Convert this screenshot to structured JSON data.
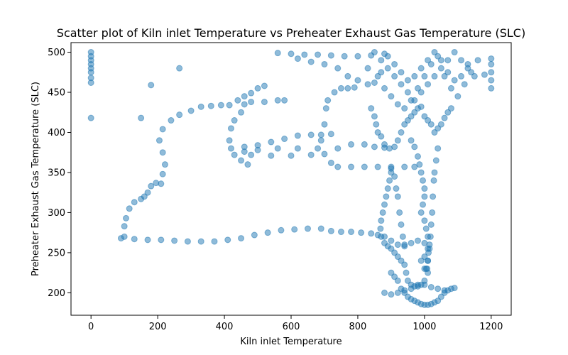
{
  "chart_data": {
    "type": "scatter",
    "title": "Scatter plot of Kiln inlet Temperature vs Preheater Exhaust Gas Temperature (SLC)",
    "xlabel": "Kiln inlet Temperature",
    "ylabel": "Preheater Exhaust Gas Temperature (SLC)",
    "xlim": [
      -60,
      1260
    ],
    "ylim": [
      172,
      512
    ],
    "xticks": [
      0,
      200,
      400,
      600,
      800,
      1000,
      1200
    ],
    "yticks": [
      200,
      250,
      300,
      350,
      400,
      450,
      500
    ],
    "grid": false,
    "color": "#1f77b4",
    "alpha": 0.5,
    "series": [
      {
        "points": [
          [
            0,
            418
          ],
          [
            0,
            462
          ],
          [
            0,
            468
          ],
          [
            0,
            475
          ],
          [
            0,
            480
          ],
          [
            0,
            485
          ],
          [
            0,
            490
          ],
          [
            0,
            495
          ],
          [
            0,
            500
          ],
          [
            150,
            418
          ],
          [
            180,
            459
          ],
          [
            265,
            480
          ],
          [
            90,
            268
          ],
          [
            100,
            270
          ],
          [
            100,
            283
          ],
          [
            105,
            293
          ],
          [
            115,
            305
          ],
          [
            130,
            313
          ],
          [
            150,
            317
          ],
          [
            160,
            320
          ],
          [
            170,
            325
          ],
          [
            180,
            333
          ],
          [
            195,
            337
          ],
          [
            210,
            336
          ],
          [
            215,
            348
          ],
          [
            222,
            360
          ],
          [
            215,
            375
          ],
          [
            205,
            390
          ],
          [
            215,
            404
          ],
          [
            240,
            415
          ],
          [
            265,
            422
          ],
          [
            300,
            427
          ],
          [
            330,
            432
          ],
          [
            360,
            433
          ],
          [
            390,
            434
          ],
          [
            415,
            434
          ],
          [
            440,
            440
          ],
          [
            460,
            445
          ],
          [
            480,
            449
          ],
          [
            500,
            455
          ],
          [
            520,
            458
          ],
          [
            130,
            267
          ],
          [
            170,
            266
          ],
          [
            210,
            266
          ],
          [
            250,
            265
          ],
          [
            290,
            264
          ],
          [
            330,
            264
          ],
          [
            370,
            264
          ],
          [
            410,
            266
          ],
          [
            450,
            268
          ],
          [
            490,
            272
          ],
          [
            530,
            275
          ],
          [
            570,
            278
          ],
          [
            610,
            279
          ],
          [
            650,
            280
          ],
          [
            690,
            280
          ],
          [
            720,
            277
          ],
          [
            750,
            276
          ],
          [
            780,
            276
          ],
          [
            810,
            275
          ],
          [
            840,
            274
          ],
          [
            860,
            272
          ],
          [
            880,
            270
          ],
          [
            470,
            360
          ],
          [
            450,
            365
          ],
          [
            430,
            372
          ],
          [
            420,
            380
          ],
          [
            415,
            390
          ],
          [
            420,
            405
          ],
          [
            430,
            415
          ],
          [
            450,
            425
          ],
          [
            460,
            435
          ],
          [
            480,
            438
          ],
          [
            520,
            438
          ],
          [
            560,
            440
          ],
          [
            580,
            440
          ],
          [
            460,
            382
          ],
          [
            500,
            384
          ],
          [
            540,
            388
          ],
          [
            580,
            392
          ],
          [
            620,
            396
          ],
          [
            660,
            397
          ],
          [
            690,
            397
          ],
          [
            720,
            398
          ],
          [
            480,
            372
          ],
          [
            540,
            371
          ],
          [
            600,
            371
          ],
          [
            660,
            372
          ],
          [
            700,
            373
          ],
          [
            740,
            380
          ],
          [
            780,
            385
          ],
          [
            820,
            385
          ],
          [
            850,
            382
          ],
          [
            880,
            381
          ],
          [
            460,
            376
          ],
          [
            500,
            378
          ],
          [
            560,
            380
          ],
          [
            620,
            380
          ],
          [
            680,
            380
          ],
          [
            690,
            390
          ],
          [
            700,
            410
          ],
          [
            705,
            430
          ],
          [
            710,
            440
          ],
          [
            730,
            450
          ],
          [
            750,
            455
          ],
          [
            770,
            455
          ],
          [
            790,
            456
          ],
          [
            720,
            362
          ],
          [
            740,
            357
          ],
          [
            780,
            357
          ],
          [
            820,
            357
          ],
          [
            860,
            357
          ],
          [
            900,
            357
          ],
          [
            940,
            357
          ],
          [
            970,
            357
          ],
          [
            560,
            499
          ],
          [
            600,
            498
          ],
          [
            640,
            497
          ],
          [
            680,
            497
          ],
          [
            720,
            496
          ],
          [
            760,
            495
          ],
          [
            800,
            495
          ],
          [
            840,
            496
          ],
          [
            880,
            498
          ],
          [
            620,
            492
          ],
          [
            660,
            488
          ],
          [
            700,
            485
          ],
          [
            740,
            480
          ],
          [
            770,
            470
          ],
          [
            800,
            465
          ],
          [
            830,
            460
          ],
          [
            850,
            500
          ],
          [
            870,
            490
          ],
          [
            890,
            480
          ],
          [
            910,
            470
          ],
          [
            930,
            460
          ],
          [
            950,
            450
          ],
          [
            970,
            440
          ],
          [
            990,
            450
          ],
          [
            1010,
            460
          ],
          [
            1030,
            470
          ],
          [
            1050,
            480
          ],
          [
            1070,
            490
          ],
          [
            1090,
            500
          ],
          [
            1110,
            490
          ],
          [
            1130,
            480
          ],
          [
            1150,
            470
          ],
          [
            860,
            470
          ],
          [
            880,
            455
          ],
          [
            900,
            445
          ],
          [
            920,
            435
          ],
          [
            940,
            430
          ],
          [
            960,
            440
          ],
          [
            980,
            455
          ],
          [
            1000,
            470
          ],
          [
            1020,
            485
          ],
          [
            1040,
            495
          ],
          [
            1060,
            470
          ],
          [
            1080,
            455
          ],
          [
            1100,
            445
          ],
          [
            1120,
            460
          ],
          [
            1140,
            475
          ],
          [
            1160,
            490
          ],
          [
            830,
            480
          ],
          [
            850,
            462
          ],
          [
            870,
            475
          ],
          [
            890,
            495
          ],
          [
            910,
            485
          ],
          [
            930,
            475
          ],
          [
            950,
            465
          ],
          [
            970,
            470
          ],
          [
            990,
            480
          ],
          [
            1010,
            490
          ],
          [
            1030,
            500
          ],
          [
            1050,
            490
          ],
          [
            1070,
            475
          ],
          [
            1090,
            465
          ],
          [
            1110,
            470
          ],
          [
            1130,
            485
          ],
          [
            1200,
            455
          ],
          [
            1200,
            465
          ],
          [
            1200,
            475
          ],
          [
            1200,
            485
          ],
          [
            1200,
            492
          ],
          [
            1180,
            472
          ],
          [
            900,
            350
          ],
          [
            895,
            340
          ],
          [
            890,
            330
          ],
          [
            885,
            320
          ],
          [
            880,
            310
          ],
          [
            875,
            300
          ],
          [
            870,
            290
          ],
          [
            868,
            280
          ],
          [
            870,
            270
          ],
          [
            880,
            262
          ],
          [
            890,
            258
          ],
          [
            900,
            255
          ],
          [
            910,
            250
          ],
          [
            920,
            245
          ],
          [
            930,
            240
          ],
          [
            940,
            235
          ],
          [
            945,
            225
          ],
          [
            950,
            215
          ],
          [
            960,
            210
          ],
          [
            970,
            208
          ],
          [
            980,
            210
          ],
          [
            900,
            225
          ],
          [
            910,
            220
          ],
          [
            920,
            215
          ],
          [
            930,
            205
          ],
          [
            940,
            200
          ],
          [
            950,
            195
          ],
          [
            960,
            192
          ],
          [
            970,
            190
          ],
          [
            980,
            188
          ],
          [
            990,
            186
          ],
          [
            1000,
            185
          ],
          [
            1010,
            185
          ],
          [
            1020,
            186
          ],
          [
            1030,
            188
          ],
          [
            1040,
            190
          ],
          [
            1050,
            195
          ],
          [
            1060,
            200
          ],
          [
            1070,
            203
          ],
          [
            1080,
            205
          ],
          [
            1090,
            206
          ],
          [
            900,
            265
          ],
          [
            920,
            260
          ],
          [
            940,
            258
          ],
          [
            960,
            262
          ],
          [
            980,
            265
          ],
          [
            1000,
            262
          ],
          [
            1010,
            255
          ],
          [
            1000,
            245
          ],
          [
            990,
            240
          ],
          [
            1000,
            230
          ],
          [
            1010,
            225
          ],
          [
            1000,
            215
          ],
          [
            990,
            210
          ],
          [
            880,
            200
          ],
          [
            900,
            198
          ],
          [
            920,
            200
          ],
          [
            940,
            203
          ],
          [
            960,
            205
          ],
          [
            980,
            208
          ],
          [
            1000,
            210
          ],
          [
            1020,
            207
          ],
          [
            1040,
            205
          ],
          [
            1060,
            203
          ],
          [
            900,
            355
          ],
          [
            910,
            345
          ],
          [
            915,
            330
          ],
          [
            920,
            320
          ],
          [
            925,
            300
          ],
          [
            930,
            285
          ],
          [
            935,
            270
          ],
          [
            940,
            260
          ],
          [
            960,
            390
          ],
          [
            970,
            382
          ],
          [
            980,
            370
          ],
          [
            985,
            360
          ],
          [
            990,
            350
          ],
          [
            995,
            340
          ],
          [
            1000,
            330
          ],
          [
            1000,
            320
          ],
          [
            995,
            310
          ],
          [
            990,
            300
          ],
          [
            1000,
            290
          ],
          [
            1005,
            280
          ],
          [
            1010,
            270
          ],
          [
            1015,
            255
          ],
          [
            1010,
            240
          ],
          [
            1005,
            230
          ],
          [
            1040,
            380
          ],
          [
            1035,
            365
          ],
          [
            1030,
            350
          ],
          [
            1028,
            340
          ],
          [
            1025,
            320
          ],
          [
            1023,
            300
          ],
          [
            1020,
            285
          ],
          [
            1018,
            270
          ],
          [
            1015,
            260
          ],
          [
            1012,
            250
          ],
          [
            1010,
            240
          ],
          [
            1008,
            230
          ],
          [
            840,
            430
          ],
          [
            850,
            420
          ],
          [
            855,
            410
          ],
          [
            860,
            400
          ],
          [
            870,
            395
          ],
          [
            880,
            385
          ],
          [
            895,
            380
          ],
          [
            910,
            382
          ],
          [
            920,
            390
          ],
          [
            930,
            400
          ],
          [
            940,
            410
          ],
          [
            950,
            415
          ],
          [
            960,
            420
          ],
          [
            970,
            425
          ],
          [
            980,
            430
          ],
          [
            990,
            432
          ],
          [
            1000,
            420
          ],
          [
            1010,
            415
          ],
          [
            1020,
            410
          ],
          [
            1030,
            400
          ],
          [
            1040,
            405
          ],
          [
            1050,
            410
          ],
          [
            1060,
            418
          ],
          [
            1070,
            425
          ],
          [
            1080,
            430
          ]
        ]
      }
    ]
  }
}
